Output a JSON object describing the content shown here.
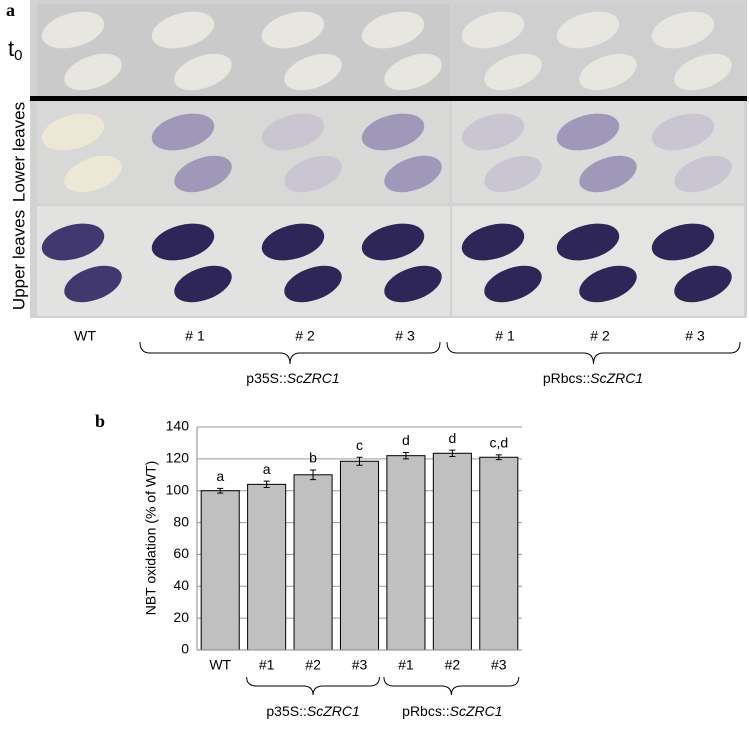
{
  "panel_a": {
    "letter": "a",
    "row_labels": {
      "t0": {
        "base": "t",
        "sub": "0"
      },
      "lower": "Lower leaves",
      "upper": "Upper leaves"
    },
    "columns": [
      "WT",
      "# 1",
      "# 2",
      "# 3",
      "# 1",
      "# 2",
      "# 3"
    ],
    "groups": [
      {
        "prefix": "p35S::",
        "italic": "ScZRC1"
      },
      {
        "prefix": "pRbcs::",
        "italic": "ScZRC1"
      }
    ]
  },
  "chart_data": {
    "type": "bar",
    "letter": "b",
    "ylabel": "NBT oxidation (% of WT)",
    "categories": [
      "WT",
      "#1",
      "#2",
      "#3",
      "#1",
      "#2",
      "#3"
    ],
    "values": [
      100,
      104,
      110,
      118.5,
      122,
      123.5,
      121
    ],
    "errors": [
      1.5,
      2,
      3,
      2.5,
      2,
      2,
      1.5
    ],
    "annotations": [
      "a",
      "a",
      "b",
      "c",
      "d",
      "d",
      "c,d"
    ],
    "groups": [
      {
        "prefix": "p35S::",
        "italic": "ScZRC1"
      },
      {
        "prefix": "pRbcs::",
        "italic": "ScZRC1"
      }
    ],
    "color": "#c0c0c0",
    "ylim": [
      0,
      140
    ],
    "yticks": [
      0,
      20,
      40,
      60,
      80,
      100,
      120,
      140
    ],
    "grid": true
  }
}
